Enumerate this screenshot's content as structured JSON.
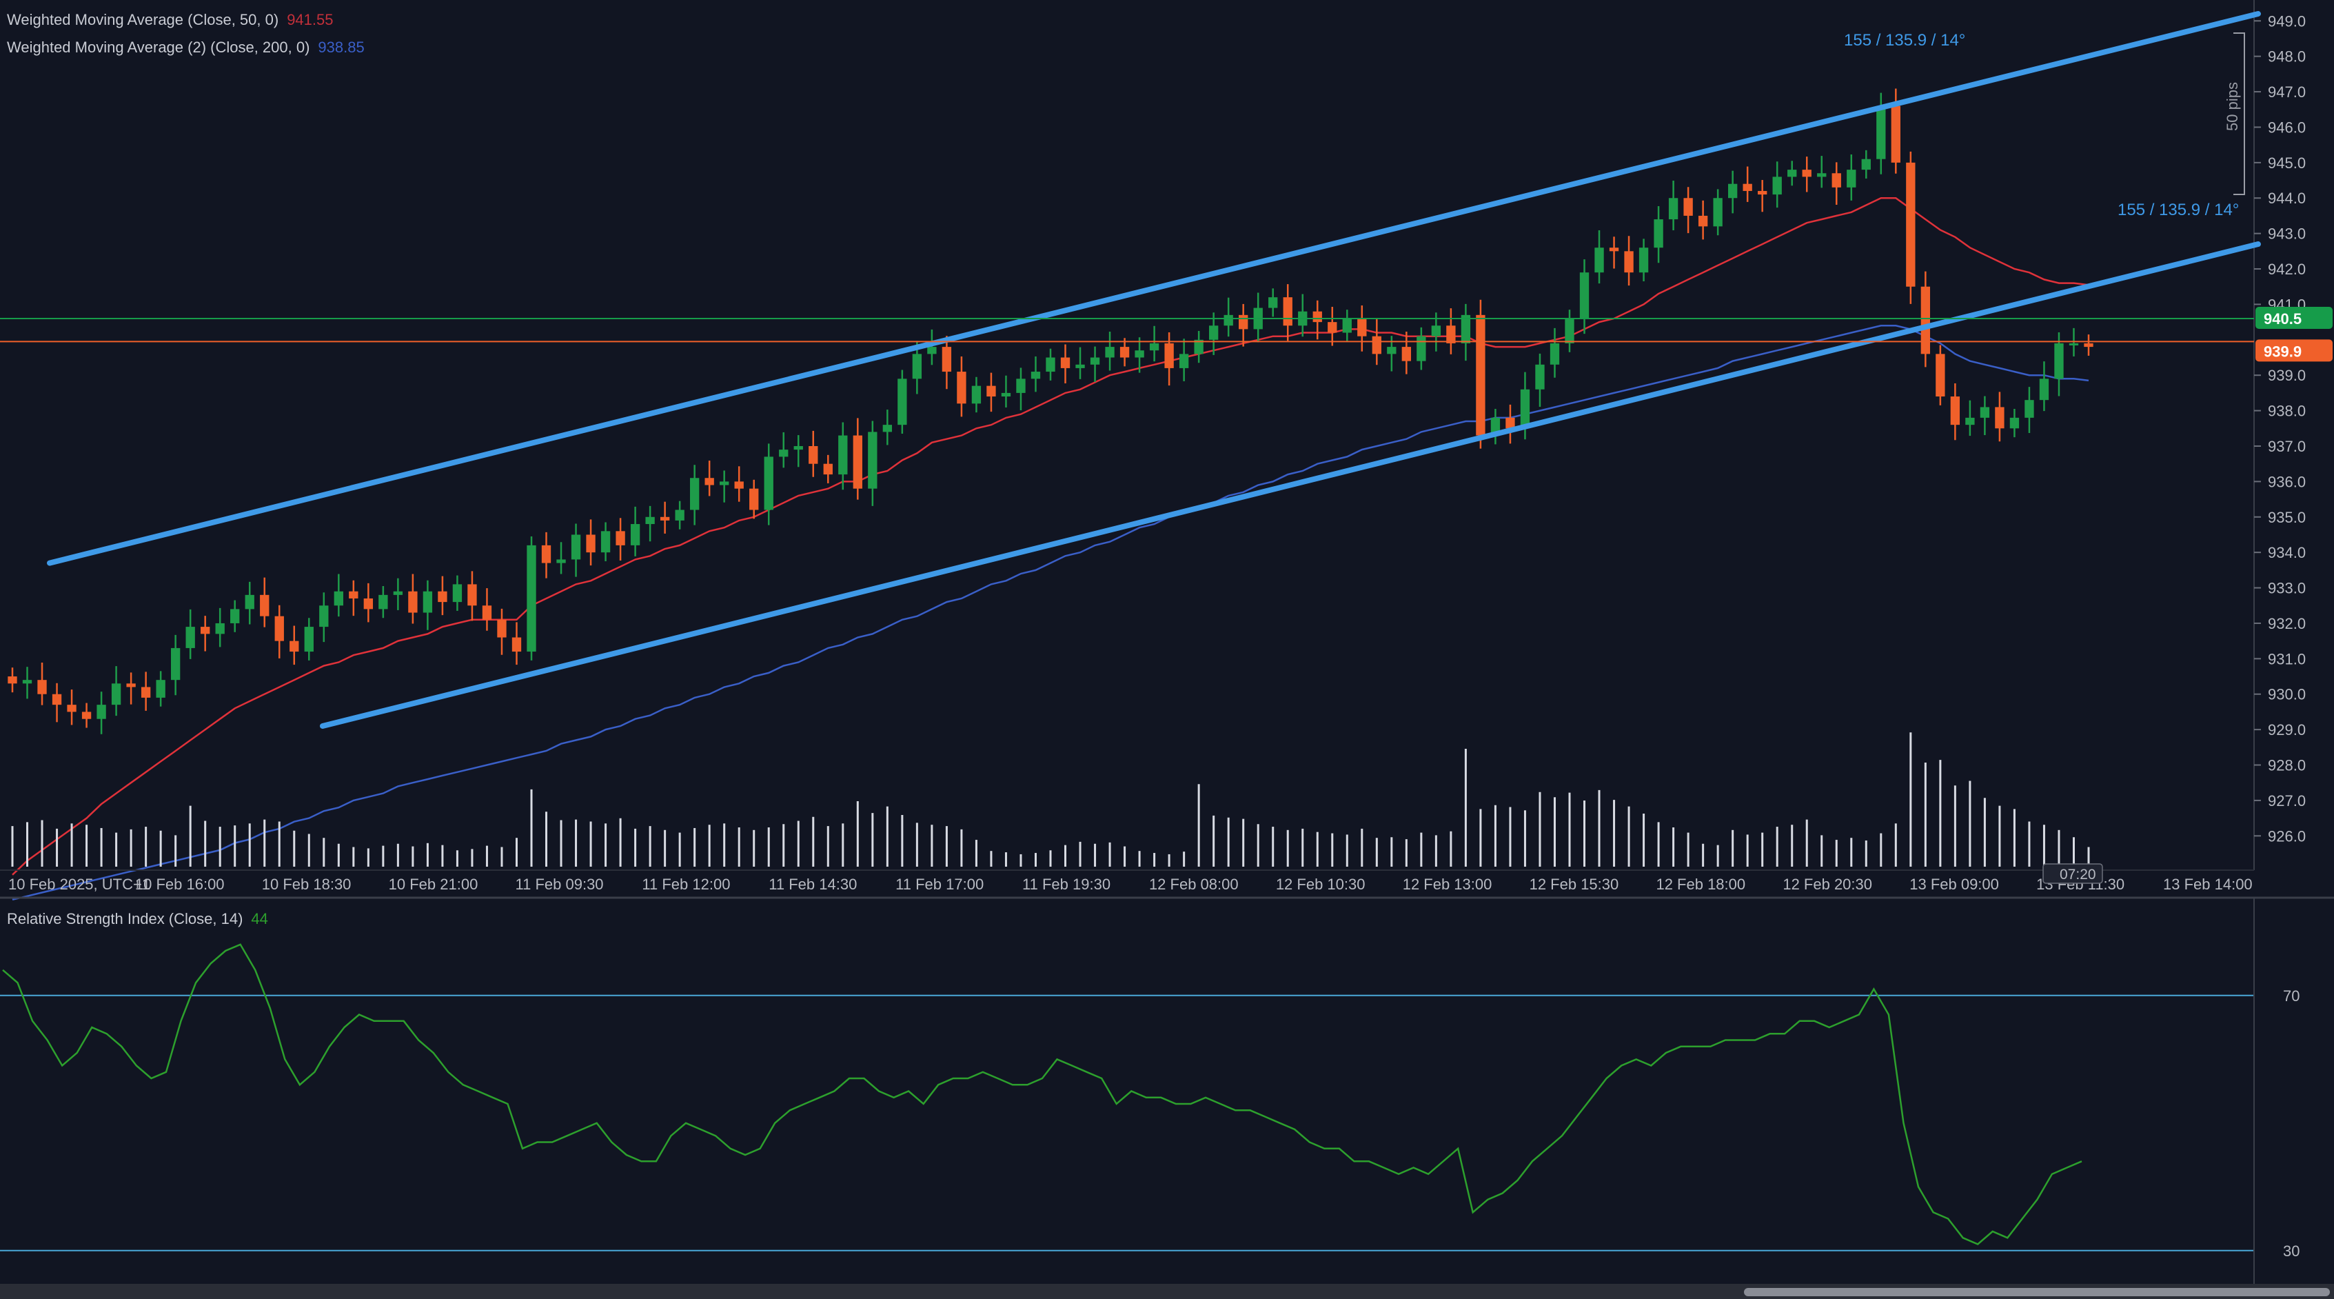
{
  "legends": {
    "wma50": {
      "label": "Weighted Moving Average (Close, 50, 0)",
      "value": "941.55",
      "color": "#e0323a"
    },
    "wma200": {
      "label": "Weighted Moving Average (2) (Close, 200, 0)",
      "value": "938.85",
      "color": "#3a5fc8"
    },
    "rsi": {
      "label": "Relative Strength Index (Close, 14)",
      "value": "44",
      "color": "#2da02d"
    }
  },
  "annotations": {
    "channel_label_top": "155 / 135.9 / 14°",
    "channel_label_mid": "155 / 135.9 / 14°",
    "pips_label": "50 pips",
    "time_marker": "07:20"
  },
  "price_labels": {
    "green": {
      "text": "940.5",
      "color": "#169c4a"
    },
    "orange": {
      "text": "939.9",
      "color": "#f0602a"
    }
  },
  "colors": {
    "background": "#111522",
    "up_candle": "#1e9c4a",
    "down_candle": "#f0602a",
    "channel": "#3f9ae8",
    "volume": "#d8dbe3",
    "axis_text": "#b7bac2",
    "rsi_band": "#4aa8d8"
  },
  "chart_data": [
    {
      "type": "candlestick",
      "title": "",
      "ylim": [
        925.5,
        949.2
      ],
      "y_ticks": [
        "949.0",
        "948.0",
        "947.0",
        "946.0",
        "945.0",
        "944.0",
        "943.0",
        "942.0",
        "941.0",
        "939.0",
        "938.0",
        "937.0",
        "936.0",
        "935.0",
        "934.0",
        "933.0",
        "932.0",
        "931.0",
        "930.0",
        "929.0",
        "928.0",
        "927.0",
        "926.0"
      ],
      "x_ticks": [
        "10 Feb 2025, UTC+1",
        "10 Feb 16:00",
        "10 Feb 18:30",
        "10 Feb 21:00",
        "11 Feb 09:30",
        "11 Feb 12:00",
        "11 Feb 14:30",
        "11 Feb 17:00",
        "11 Feb 19:30",
        "12 Feb 08:00",
        "12 Feb 10:30",
        "12 Feb 13:00",
        "12 Feb 15:30",
        "12 Feb 18:00",
        "12 Feb 20:30",
        "13 Feb 09:00",
        "13 Feb 11:30",
        "13 Feb 14:00"
      ],
      "close": [
        930.3,
        930.4,
        930.0,
        929.7,
        929.5,
        929.3,
        929.7,
        930.3,
        930.2,
        929.9,
        930.4,
        931.3,
        931.9,
        931.7,
        932.0,
        932.4,
        932.8,
        932.2,
        931.5,
        931.2,
        931.9,
        932.5,
        932.9,
        932.7,
        932.4,
        932.8,
        932.9,
        932.3,
        932.9,
        932.6,
        933.1,
        932.5,
        932.1,
        931.6,
        931.2,
        934.2,
        933.7,
        933.8,
        934.5,
        934.0,
        934.6,
        934.2,
        934.8,
        935.0,
        934.9,
        935.2,
        936.1,
        935.9,
        936.0,
        935.8,
        935.2,
        936.7,
        936.9,
        937.0,
        936.5,
        936.2,
        937.3,
        935.8,
        937.4,
        937.6,
        938.9,
        939.6,
        939.8,
        939.1,
        938.2,
        938.7,
        938.4,
        938.5,
        938.9,
        939.1,
        939.5,
        939.2,
        939.3,
        939.5,
        939.8,
        939.5,
        939.7,
        939.9,
        939.2,
        939.6,
        940.0,
        940.4,
        940.7,
        940.3,
        940.9,
        941.2,
        940.4,
        940.8,
        940.5,
        940.2,
        940.6,
        940.1,
        939.6,
        939.8,
        939.4,
        940.1,
        940.4,
        939.9,
        940.7,
        937.3,
        937.8,
        937.5,
        938.6,
        939.3,
        939.9,
        940.6,
        941.9,
        942.6,
        942.5,
        941.9,
        942.6,
        943.4,
        944.0,
        943.5,
        943.2,
        944.0,
        944.4,
        944.2,
        944.1,
        944.6,
        944.8,
        944.6,
        944.7,
        944.3,
        944.8,
        945.1,
        946.6,
        945.0,
        941.5,
        939.6,
        938.4,
        937.6,
        937.8,
        938.1,
        937.5,
        937.8,
        938.3,
        938.9,
        939.9,
        939.9,
        939.8
      ],
      "open_wick_note": "",
      "volume": [
        0.62,
        0.68,
        0.71,
        0.58,
        0.66,
        0.64,
        0.59,
        0.52,
        0.57,
        0.61,
        0.55,
        0.48,
        0.93,
        0.7,
        0.61,
        0.63,
        0.66,
        0.72,
        0.69,
        0.55,
        0.5,
        0.44,
        0.35,
        0.3,
        0.28,
        0.32,
        0.35,
        0.31,
        0.36,
        0.33,
        0.25,
        0.27,
        0.32,
        0.3,
        0.44,
        1.18,
        0.84,
        0.71,
        0.72,
        0.69,
        0.66,
        0.74,
        0.58,
        0.62,
        0.56,
        0.52,
        0.59,
        0.64,
        0.66,
        0.6,
        0.56,
        0.6,
        0.65,
        0.7,
        0.76,
        0.62,
        0.66,
        1.0,
        0.82,
        0.92,
        0.79,
        0.67,
        0.64,
        0.62,
        0.57,
        0.41,
        0.24,
        0.22,
        0.19,
        0.21,
        0.25,
        0.33,
        0.38,
        0.35,
        0.37,
        0.31,
        0.24,
        0.21,
        0.19,
        0.23,
        1.26,
        0.78,
        0.75,
        0.73,
        0.65,
        0.61,
        0.56,
        0.58,
        0.53,
        0.51,
        0.49,
        0.58,
        0.44,
        0.45,
        0.42,
        0.52,
        0.48,
        0.54,
        1.8,
        0.88,
        0.94,
        0.91,
        0.86,
        1.14,
        1.06,
        1.13,
        1.01,
        1.17,
        1.02,
        0.92,
        0.81,
        0.68,
        0.6,
        0.52,
        0.35,
        0.33,
        0.56,
        0.49,
        0.52,
        0.61,
        0.64,
        0.72,
        0.48,
        0.41,
        0.44,
        0.4,
        0.51,
        0.66,
        2.05,
        1.59,
        1.63,
        1.24,
        1.31,
        1.05,
        0.93,
        0.88,
        0.69,
        0.64,
        0.56,
        0.45,
        0.3
      ],
      "wma50": [
        924.9,
        925.3,
        925.6,
        925.9,
        926.2,
        926.5,
        926.9,
        927.2,
        927.5,
        927.8,
        928.1,
        928.4,
        928.7,
        929.0,
        929.3,
        929.6,
        929.8,
        930.0,
        930.2,
        930.4,
        930.6,
        930.8,
        930.9,
        931.1,
        931.2,
        931.3,
        931.5,
        931.6,
        931.7,
        931.9,
        932.0,
        932.1,
        932.1,
        932.1,
        932.1,
        932.5,
        932.7,
        932.9,
        933.1,
        933.2,
        933.4,
        933.6,
        933.8,
        933.9,
        934.1,
        934.2,
        934.4,
        934.6,
        934.7,
        934.9,
        935.0,
        935.2,
        935.4,
        935.6,
        935.7,
        935.8,
        936.0,
        936.0,
        936.2,
        936.3,
        936.6,
        936.8,
        937.1,
        937.2,
        937.3,
        937.5,
        937.6,
        937.8,
        937.9,
        938.1,
        938.3,
        938.5,
        938.6,
        938.8,
        939.0,
        939.1,
        939.2,
        939.3,
        939.4,
        939.5,
        939.6,
        939.7,
        939.8,
        939.9,
        940.0,
        940.1,
        940.1,
        940.2,
        940.2,
        940.2,
        940.3,
        940.3,
        940.2,
        940.2,
        940.1,
        940.1,
        940.1,
        940.1,
        940.1,
        939.9,
        939.8,
        939.8,
        939.8,
        939.9,
        940.0,
        940.1,
        940.3,
        940.5,
        940.6,
        940.8,
        941.0,
        941.3,
        941.5,
        941.7,
        941.9,
        942.1,
        942.3,
        942.5,
        942.7,
        942.9,
        943.1,
        943.3,
        943.4,
        943.5,
        943.6,
        943.8,
        944.0,
        944.0,
        943.7,
        943.4,
        943.1,
        942.9,
        942.6,
        942.4,
        942.2,
        942.0,
        941.9,
        941.7,
        941.6,
        941.6,
        941.55
      ],
      "wma200": [
        924.2,
        924.3,
        924.4,
        924.5,
        924.6,
        924.7,
        924.8,
        924.9,
        925.0,
        925.1,
        925.2,
        925.3,
        925.4,
        925.5,
        925.6,
        925.8,
        925.9,
        926.1,
        926.2,
        926.4,
        926.5,
        926.7,
        926.8,
        927.0,
        927.1,
        927.2,
        927.4,
        927.5,
        927.6,
        927.7,
        927.8,
        927.9,
        928.0,
        928.1,
        928.2,
        928.3,
        928.4,
        928.6,
        928.7,
        928.8,
        929.0,
        929.1,
        929.3,
        929.4,
        929.6,
        929.7,
        929.9,
        930.0,
        930.2,
        930.3,
        930.5,
        930.6,
        930.8,
        930.9,
        931.1,
        931.3,
        931.4,
        931.6,
        931.7,
        931.9,
        932.1,
        932.2,
        932.4,
        932.6,
        932.7,
        932.9,
        933.1,
        933.2,
        933.4,
        933.5,
        933.7,
        933.9,
        934.0,
        934.2,
        934.3,
        934.5,
        934.7,
        934.8,
        935.0,
        935.1,
        935.3,
        935.4,
        935.6,
        935.7,
        935.9,
        936.0,
        936.2,
        936.3,
        936.5,
        936.6,
        936.7,
        936.9,
        937.0,
        937.1,
        937.2,
        937.4,
        937.5,
        937.6,
        937.7,
        937.7,
        937.8,
        937.8,
        937.9,
        938.0,
        938.1,
        938.2,
        938.3,
        938.4,
        938.5,
        938.6,
        938.7,
        938.8,
        938.9,
        939.0,
        939.1,
        939.2,
        939.4,
        939.5,
        939.6,
        939.7,
        939.8,
        939.9,
        940.0,
        940.1,
        940.2,
        940.3,
        940.4,
        940.4,
        940.3,
        940.1,
        939.9,
        939.6,
        939.4,
        939.3,
        939.2,
        939.1,
        939.0,
        939.0,
        938.9,
        938.9,
        938.85
      ]
    },
    {
      "type": "line",
      "title": "",
      "ylim": [
        25,
        85
      ],
      "y_ticks": [
        "70",
        "30"
      ],
      "bands": [
        70,
        30
      ],
      "values": [
        74,
        72,
        66,
        63,
        59,
        61,
        65,
        64,
        62,
        59,
        57,
        58,
        66,
        72,
        75,
        77,
        78,
        74,
        68,
        60,
        56,
        58,
        62,
        65,
        67,
        66,
        66,
        66,
        63,
        61,
        58,
        56,
        55,
        54,
        53,
        46,
        47,
        47,
        48,
        49,
        50,
        47,
        45,
        44,
        44,
        48,
        50,
        49,
        48,
        46,
        45,
        46,
        50,
        52,
        53,
        54,
        55,
        57,
        57,
        55,
        54,
        55,
        53,
        56,
        57,
        57,
        58,
        57,
        56,
        56,
        57,
        60,
        59,
        58,
        57,
        53,
        55,
        54,
        54,
        53,
        53,
        54,
        53,
        52,
        52,
        51,
        50,
        49,
        47,
        46,
        46,
        44,
        44,
        43,
        42,
        43,
        42,
        44,
        46,
        36,
        38,
        39,
        41,
        44,
        46,
        48,
        51,
        54,
        57,
        59,
        60,
        59,
        61,
        62,
        62,
        62,
        63,
        63,
        63,
        64,
        64,
        66,
        66,
        65,
        66,
        67,
        71,
        67,
        50,
        40,
        36,
        35,
        32,
        31,
        33,
        32,
        35,
        38,
        42,
        43,
        44
      ]
    }
  ]
}
